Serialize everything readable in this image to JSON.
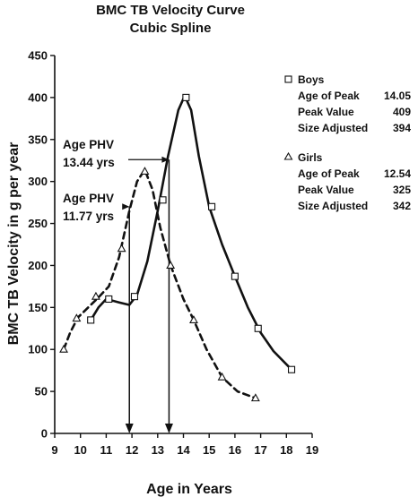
{
  "chart_data": {
    "type": "line",
    "title": "BMC TB Velocity Curve",
    "subtitle": "Cubic Spline",
    "xlabel": "Age in Years",
    "ylabel": "BMC TB Velocity in g per year",
    "xlim": [
      9,
      19
    ],
    "ylim": [
      0,
      450
    ],
    "x_ticks": [
      "9",
      "10",
      "11",
      "12",
      "13",
      "14",
      "15",
      "16",
      "17",
      "18",
      "19"
    ],
    "y_ticks": [
      "0",
      "50",
      "100",
      "150",
      "200",
      "250",
      "300",
      "350",
      "400",
      "450"
    ],
    "grid": false,
    "legend_position": "right",
    "series": [
      {
        "name": "Boys",
        "marker": "square",
        "line_style": "solid",
        "points": [
          [
            10.4,
            135
          ],
          [
            11.1,
            160
          ],
          [
            12.1,
            163
          ],
          [
            13.2,
            278
          ],
          [
            14.1,
            400
          ],
          [
            15.1,
            270
          ],
          [
            16.0,
            187
          ],
          [
            16.9,
            125
          ],
          [
            18.2,
            76
          ]
        ],
        "curve": [
          [
            10.4,
            135
          ],
          [
            10.7,
            150
          ],
          [
            11.0,
            160
          ],
          [
            11.5,
            156
          ],
          [
            11.9,
            153
          ],
          [
            12.2,
            165
          ],
          [
            12.6,
            205
          ],
          [
            13.0,
            265
          ],
          [
            13.4,
            330
          ],
          [
            13.8,
            385
          ],
          [
            14.05,
            402
          ],
          [
            14.3,
            385
          ],
          [
            14.6,
            330
          ],
          [
            15.0,
            270
          ],
          [
            15.5,
            225
          ],
          [
            16.0,
            187
          ],
          [
            16.5,
            150
          ],
          [
            17.0,
            120
          ],
          [
            17.5,
            98
          ],
          [
            18.2,
            76
          ]
        ],
        "legend_items": [
          {
            "label": "Age of Peak",
            "value": "14.05"
          },
          {
            "label": "Peak Value",
            "value": "409"
          },
          {
            "label": "Size Adjusted",
            "value": "394"
          }
        ]
      },
      {
        "name": "Girls",
        "marker": "triangle",
        "line_style": "dashed",
        "points": [
          [
            9.35,
            100
          ],
          [
            9.85,
            137
          ],
          [
            10.6,
            163
          ],
          [
            11.6,
            220
          ],
          [
            12.5,
            312
          ],
          [
            13.5,
            200
          ],
          [
            14.4,
            135
          ],
          [
            15.5,
            67
          ],
          [
            16.8,
            42
          ]
        ],
        "curve": [
          [
            9.35,
            100
          ],
          [
            9.6,
            120
          ],
          [
            9.9,
            138
          ],
          [
            10.3,
            150
          ],
          [
            10.7,
            162
          ],
          [
            11.1,
            175
          ],
          [
            11.5,
            210
          ],
          [
            11.9,
            265
          ],
          [
            12.2,
            300
          ],
          [
            12.5,
            314
          ],
          [
            12.8,
            290
          ],
          [
            13.1,
            245
          ],
          [
            13.5,
            200
          ],
          [
            14.0,
            160
          ],
          [
            14.4,
            135
          ],
          [
            14.9,
            100
          ],
          [
            15.5,
            67
          ],
          [
            16.1,
            50
          ],
          [
            16.8,
            42
          ]
        ],
        "legend_items": [
          {
            "label": "Age of Peak",
            "value": "12.54"
          },
          {
            "label": "Peak Value",
            "value": "325"
          },
          {
            "label": "Size Adjusted",
            "value": "342"
          }
        ]
      }
    ],
    "annotations": [
      {
        "line1": "Age PHV",
        "line2": "13.44 yrs",
        "x": 13.44,
        "y": 325
      },
      {
        "line1": "Age PHV",
        "line2": "11.77 yrs",
        "x": 11.9,
        "y": 270
      }
    ]
  }
}
